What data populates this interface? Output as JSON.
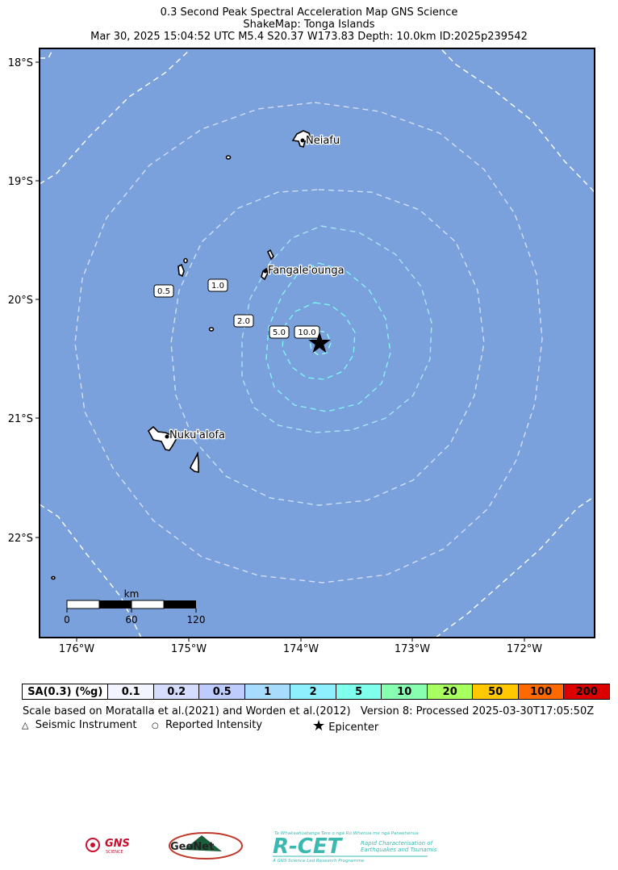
{
  "header": {
    "line1": "0.3 Second Peak Spectral Acceleration Map GNS Science",
    "line2": "ShakeMap: Tonga Islands",
    "line3": "Mar 30, 2025 15:04:52 UTC M5.4 S20.37 W173.83 Depth: 10.0km ID:2025p239542"
  },
  "map": {
    "lat_labels": [
      "18°S",
      "19°S",
      "20°S",
      "21°S",
      "22°S"
    ],
    "lon_labels": [
      "176°W",
      "175°W",
      "174°W",
      "173°W",
      "172°W"
    ],
    "places": [
      "Neiafu",
      "Fangale'ounga",
      "Nuku'alofa"
    ],
    "contour_labels": [
      "0.5",
      "1.0",
      "2.0",
      "5.0",
      "10.0"
    ],
    "scale_bar": {
      "unit": "km",
      "ticks": [
        "0",
        "60",
        "120"
      ]
    },
    "colors": {
      "ocean": "#7aa1db",
      "land": "#ffffff"
    }
  },
  "legend": {
    "label": "SA(0.3) (%g)",
    "items": [
      {
        "value": "0.1",
        "color": "#f2f4ff"
      },
      {
        "value": "0.2",
        "color": "#d6dcfc"
      },
      {
        "value": "0.5",
        "color": "#bdccfc"
      },
      {
        "value": "1",
        "color": "#a8dcfc"
      },
      {
        "value": "2",
        "color": "#8ef0fc"
      },
      {
        "value": "5",
        "color": "#80ffec"
      },
      {
        "value": "10",
        "color": "#88ffb0"
      },
      {
        "value": "20",
        "color": "#a8ff60"
      },
      {
        "value": "50",
        "color": "#ffc800"
      },
      {
        "value": "100",
        "color": "#ff6a00"
      },
      {
        "value": "200",
        "color": "#dd0000"
      }
    ]
  },
  "notes": {
    "scale_note": "Scale based on Moratalla et al.(2021) and Worden et al.(2012)",
    "version": "Version 8: Processed 2025-03-30T17:05:50Z"
  },
  "symbols": {
    "seismic": "Seismic Instrument",
    "reported": "Reported Intensity",
    "epicenter": "Epicenter"
  },
  "logos": {
    "gns": "GNS",
    "gns_sub": "SCIENCE",
    "geonet": "GeoNet",
    "rcet": "R-CET",
    "rcet_tagline": "Te Whakaahuatanga Tere o ngā Rū Whenua me ngā Parawhenua",
    "rcet_sub1": "Rapid Characterisation of",
    "rcet_sub2": "Earthquakes and Tsunamis",
    "rcet_foot": "A GNS Science Led Research Programme"
  }
}
